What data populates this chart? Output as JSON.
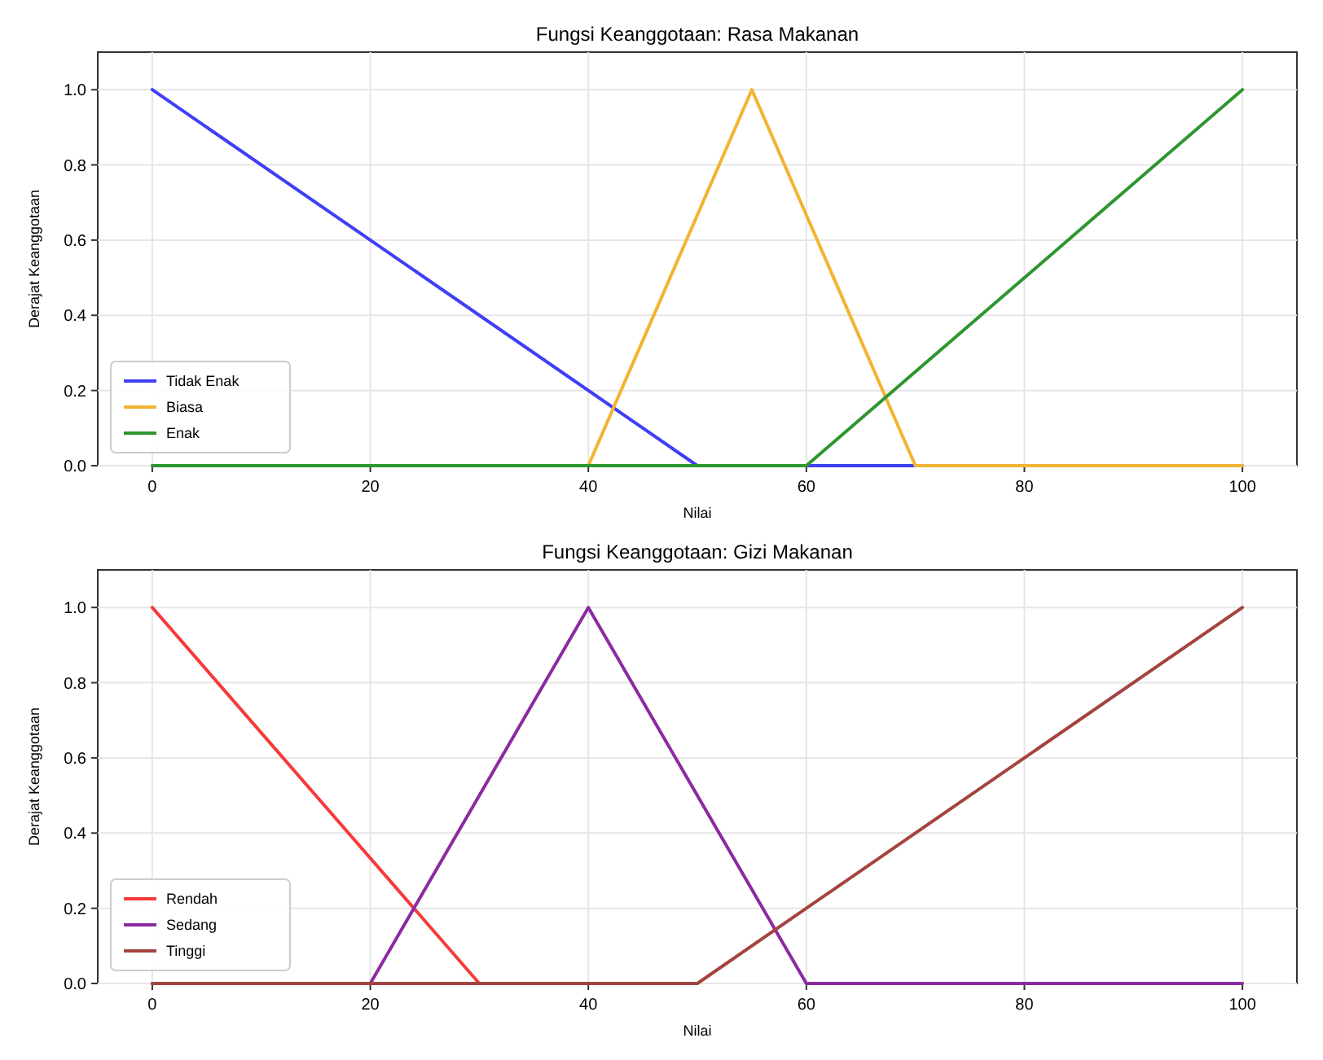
{
  "chart_data": [
    {
      "type": "line",
      "title": "Fungsi Keanggotaan: Rasa Makanan",
      "xlabel": "Nilai",
      "ylabel": "Derajat Keanggotaan",
      "xlim": [
        -5,
        105
      ],
      "ylim": [
        0,
        1.1
      ],
      "xticks": [
        0,
        20,
        40,
        60,
        80,
        100
      ],
      "yticks": [
        {
          "value": 0,
          "label": "0.0"
        },
        {
          "value": 0.2,
          "label": "0.2"
        },
        {
          "value": 0.4,
          "label": "0.4"
        },
        {
          "value": 0.6,
          "label": "0.6"
        },
        {
          "value": 0.8,
          "label": "0.8"
        },
        {
          "value": 1,
          "label": "1.0"
        }
      ],
      "grid": true,
      "legend": "bottom left",
      "marker": "none",
      "line_style": "solid",
      "series": [
        {
          "name": "Tidak Enak",
          "color": "#3f3ff5",
          "x": [
            0,
            50,
            100
          ],
          "values": [
            1,
            0,
            0
          ]
        },
        {
          "name": "Biasa",
          "color": "#f2b431",
          "x": [
            0,
            40,
            55,
            70,
            100
          ],
          "values": [
            0,
            0,
            1,
            0,
            0
          ]
        },
        {
          "name": "Enak",
          "color": "#2f962f",
          "x": [
            0,
            60,
            100
          ],
          "values": [
            0,
            0,
            1
          ]
        }
      ]
    },
    {
      "type": "line",
      "title": "Fungsi Keanggotaan: Gizi Makanan",
      "xlabel": "Nilai",
      "ylabel": "Derajat Keanggotaan",
      "xlim": [
        -5,
        105
      ],
      "ylim": [
        0,
        1.1
      ],
      "xticks": [
        0,
        20,
        40,
        60,
        80,
        100
      ],
      "yticks": [
        {
          "value": 0,
          "label": "0.0"
        },
        {
          "value": 0.2,
          "label": "0.2"
        },
        {
          "value": 0.4,
          "label": "0.4"
        },
        {
          "value": 0.6,
          "label": "0.6"
        },
        {
          "value": 0.8,
          "label": "0.8"
        },
        {
          "value": 1,
          "label": "1.0"
        }
      ],
      "grid": true,
      "legend": "bottom left",
      "marker": "none",
      "line_style": "solid",
      "series": [
        {
          "name": "Rendah",
          "color": "#f53b3b",
          "x": [
            0,
            30
          ],
          "values": [
            1,
            0
          ]
        },
        {
          "name": "Sedang",
          "color": "#8b2aa3",
          "x": [
            0,
            20,
            40,
            60,
            100
          ],
          "values": [
            0,
            0,
            1,
            0,
            0
          ]
        },
        {
          "name": "Tinggi",
          "color": "#a4443f",
          "x": [
            0,
            50,
            100
          ],
          "values": [
            0,
            0,
            1
          ]
        }
      ]
    }
  ]
}
